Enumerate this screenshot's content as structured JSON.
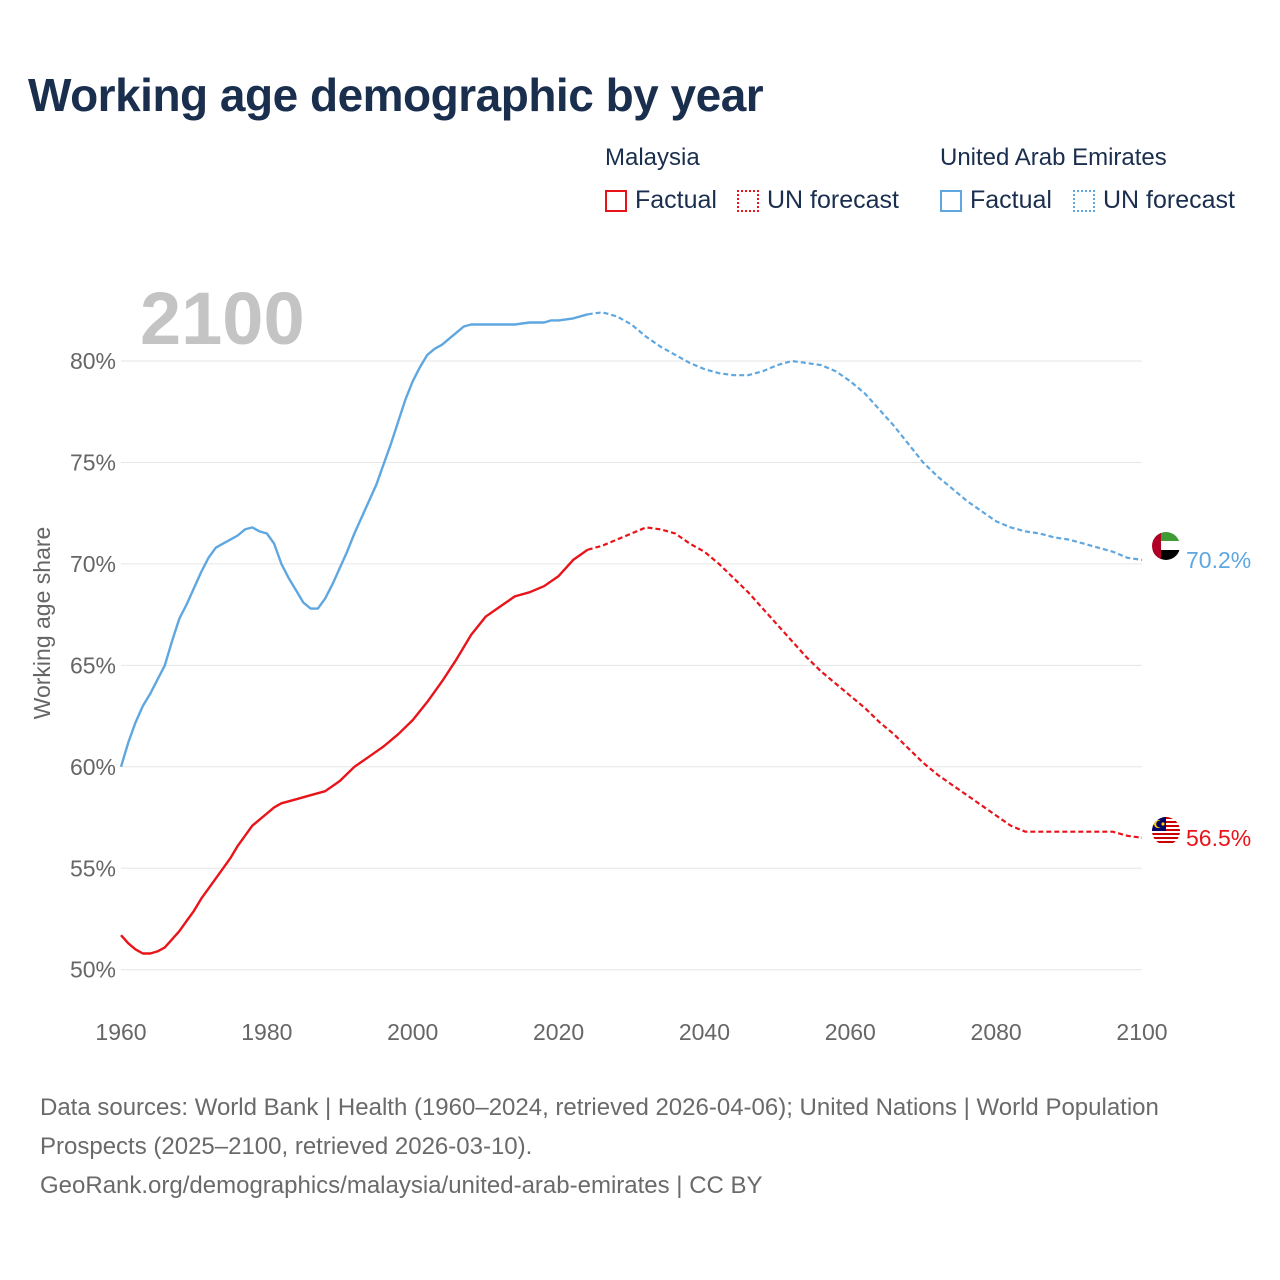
{
  "title": "Working age demographic by year",
  "legend": {
    "groups": [
      {
        "name": "Malaysia",
        "factual_label": "Factual",
        "forecast_label": "UN forecast",
        "color": "#e8141a"
      },
      {
        "name": "United Arab Emirates",
        "factual_label": "Factual",
        "forecast_label": "UN forecast",
        "color": "#5fa7e0"
      }
    ]
  },
  "footer": {
    "sources": "Data sources: World Bank | Health (1960–2024, retrieved 2026-04-06); United Nations | World Population Prospects (2025–2100, retrieved 2026-03-10).",
    "credit": "GeoRank.org/demographics/malaysia/united-arab-emirates | CC BY"
  },
  "chart_data": {
    "type": "line",
    "title": "Working age demographic by year",
    "xlabel": "",
    "ylabel": "Working age share",
    "year_watermark": "2100",
    "xlim": [
      1960,
      2100
    ],
    "ylim": [
      49,
      83.5
    ],
    "x_ticks": [
      "1960",
      "1980",
      "2000",
      "2020",
      "2040",
      "2060",
      "2080",
      "2100"
    ],
    "x_tick_values": [
      1960,
      1980,
      2000,
      2020,
      2040,
      2060,
      2080,
      2100
    ],
    "y_ticks": [
      "50%",
      "55%",
      "60%",
      "65%",
      "70%",
      "75%",
      "80%"
    ],
    "y_tick_values": [
      50,
      55,
      60,
      65,
      70,
      75,
      80
    ],
    "factual_end_year": 2024,
    "series": [
      {
        "name": "United Arab Emirates",
        "color": "#5fa7e0",
        "end_label": "70.2%",
        "flag": "uae-flag",
        "x": [
          1960,
          1961,
          1962,
          1963,
          1964,
          1965,
          1966,
          1967,
          1968,
          1969,
          1970,
          1971,
          1972,
          1973,
          1974,
          1975,
          1976,
          1977,
          1978,
          1979,
          1980,
          1981,
          1982,
          1983,
          1984,
          1985,
          1986,
          1987,
          1988,
          1989,
          1990,
          1991,
          1992,
          1993,
          1994,
          1995,
          1996,
          1997,
          1998,
          1999,
          2000,
          2001,
          2002,
          2003,
          2004,
          2005,
          2006,
          2007,
          2008,
          2009,
          2010,
          2012,
          2014,
          2016,
          2017,
          2018,
          2019,
          2020,
          2022,
          2024,
          2026,
          2028,
          2030,
          2032,
          2034,
          2036,
          2038,
          2040,
          2042,
          2044,
          2046,
          2048,
          2050,
          2052,
          2054,
          2056,
          2058,
          2060,
          2062,
          2064,
          2066,
          2068,
          2070,
          2072,
          2074,
          2076,
          2078,
          2080,
          2082,
          2084,
          2086,
          2088,
          2090,
          2092,
          2094,
          2096,
          2098,
          2100
        ],
        "values": [
          60.0,
          61.2,
          62.2,
          63.0,
          63.6,
          64.3,
          65.0,
          66.2,
          67.3,
          68.0,
          68.8,
          69.6,
          70.3,
          70.8,
          71.0,
          71.2,
          71.4,
          71.7,
          71.8,
          71.6,
          71.5,
          71.0,
          70.0,
          69.3,
          68.7,
          68.1,
          67.8,
          67.8,
          68.3,
          69.0,
          69.8,
          70.6,
          71.5,
          72.3,
          73.1,
          73.9,
          74.9,
          75.9,
          77.0,
          78.1,
          79.0,
          79.7,
          80.3,
          80.6,
          80.8,
          81.1,
          81.4,
          81.7,
          81.8,
          81.8,
          81.8,
          81.8,
          81.8,
          81.9,
          81.9,
          81.9,
          82.0,
          82.0,
          82.1,
          82.3,
          82.4,
          82.2,
          81.8,
          81.2,
          80.7,
          80.3,
          79.9,
          79.6,
          79.4,
          79.3,
          79.3,
          79.5,
          79.8,
          80.0,
          79.9,
          79.8,
          79.5,
          79.0,
          78.4,
          77.6,
          76.8,
          75.9,
          75.0,
          74.3,
          73.7,
          73.1,
          72.6,
          72.1,
          71.8,
          71.6,
          71.5,
          71.3,
          71.2,
          71.0,
          70.8,
          70.6,
          70.3,
          70.2
        ]
      },
      {
        "name": "Malaysia",
        "color": "#e8141a",
        "end_label": "56.5%",
        "flag": "malaysia-flag",
        "x": [
          1960,
          1961,
          1962,
          1963,
          1964,
          1965,
          1966,
          1967,
          1968,
          1969,
          1970,
          1971,
          1972,
          1973,
          1974,
          1975,
          1976,
          1977,
          1978,
          1979,
          1980,
          1981,
          1982,
          1984,
          1986,
          1988,
          1990,
          1992,
          1994,
          1996,
          1998,
          2000,
          2002,
          2004,
          2006,
          2008,
          2010,
          2012,
          2014,
          2016,
          2018,
          2020,
          2022,
          2024,
          2026,
          2028,
          2030,
          2032,
          2034,
          2036,
          2038,
          2040,
          2042,
          2044,
          2046,
          2048,
          2050,
          2052,
          2054,
          2056,
          2058,
          2060,
          2062,
          2064,
          2066,
          2068,
          2070,
          2072,
          2074,
          2076,
          2078,
          2080,
          2082,
          2084,
          2086,
          2088,
          2090,
          2092,
          2094,
          2096,
          2098,
          2100
        ],
        "values": [
          51.7,
          51.3,
          51.0,
          50.8,
          50.8,
          50.9,
          51.1,
          51.5,
          51.9,
          52.4,
          52.9,
          53.5,
          54.0,
          54.5,
          55.0,
          55.5,
          56.1,
          56.6,
          57.1,
          57.4,
          57.7,
          58.0,
          58.2,
          58.4,
          58.6,
          58.8,
          59.3,
          60.0,
          60.5,
          61.0,
          61.6,
          62.3,
          63.2,
          64.2,
          65.3,
          66.5,
          67.4,
          67.9,
          68.4,
          68.6,
          68.9,
          69.4,
          70.2,
          70.7,
          70.9,
          71.2,
          71.5,
          71.8,
          71.7,
          71.5,
          71.0,
          70.6,
          70.0,
          69.3,
          68.6,
          67.8,
          67.0,
          66.2,
          65.4,
          64.7,
          64.1,
          63.5,
          62.9,
          62.2,
          61.6,
          60.9,
          60.2,
          59.6,
          59.1,
          58.6,
          58.1,
          57.6,
          57.1,
          56.8,
          56.8,
          56.8,
          56.8,
          56.8,
          56.8,
          56.8,
          56.6,
          56.5
        ]
      }
    ]
  }
}
